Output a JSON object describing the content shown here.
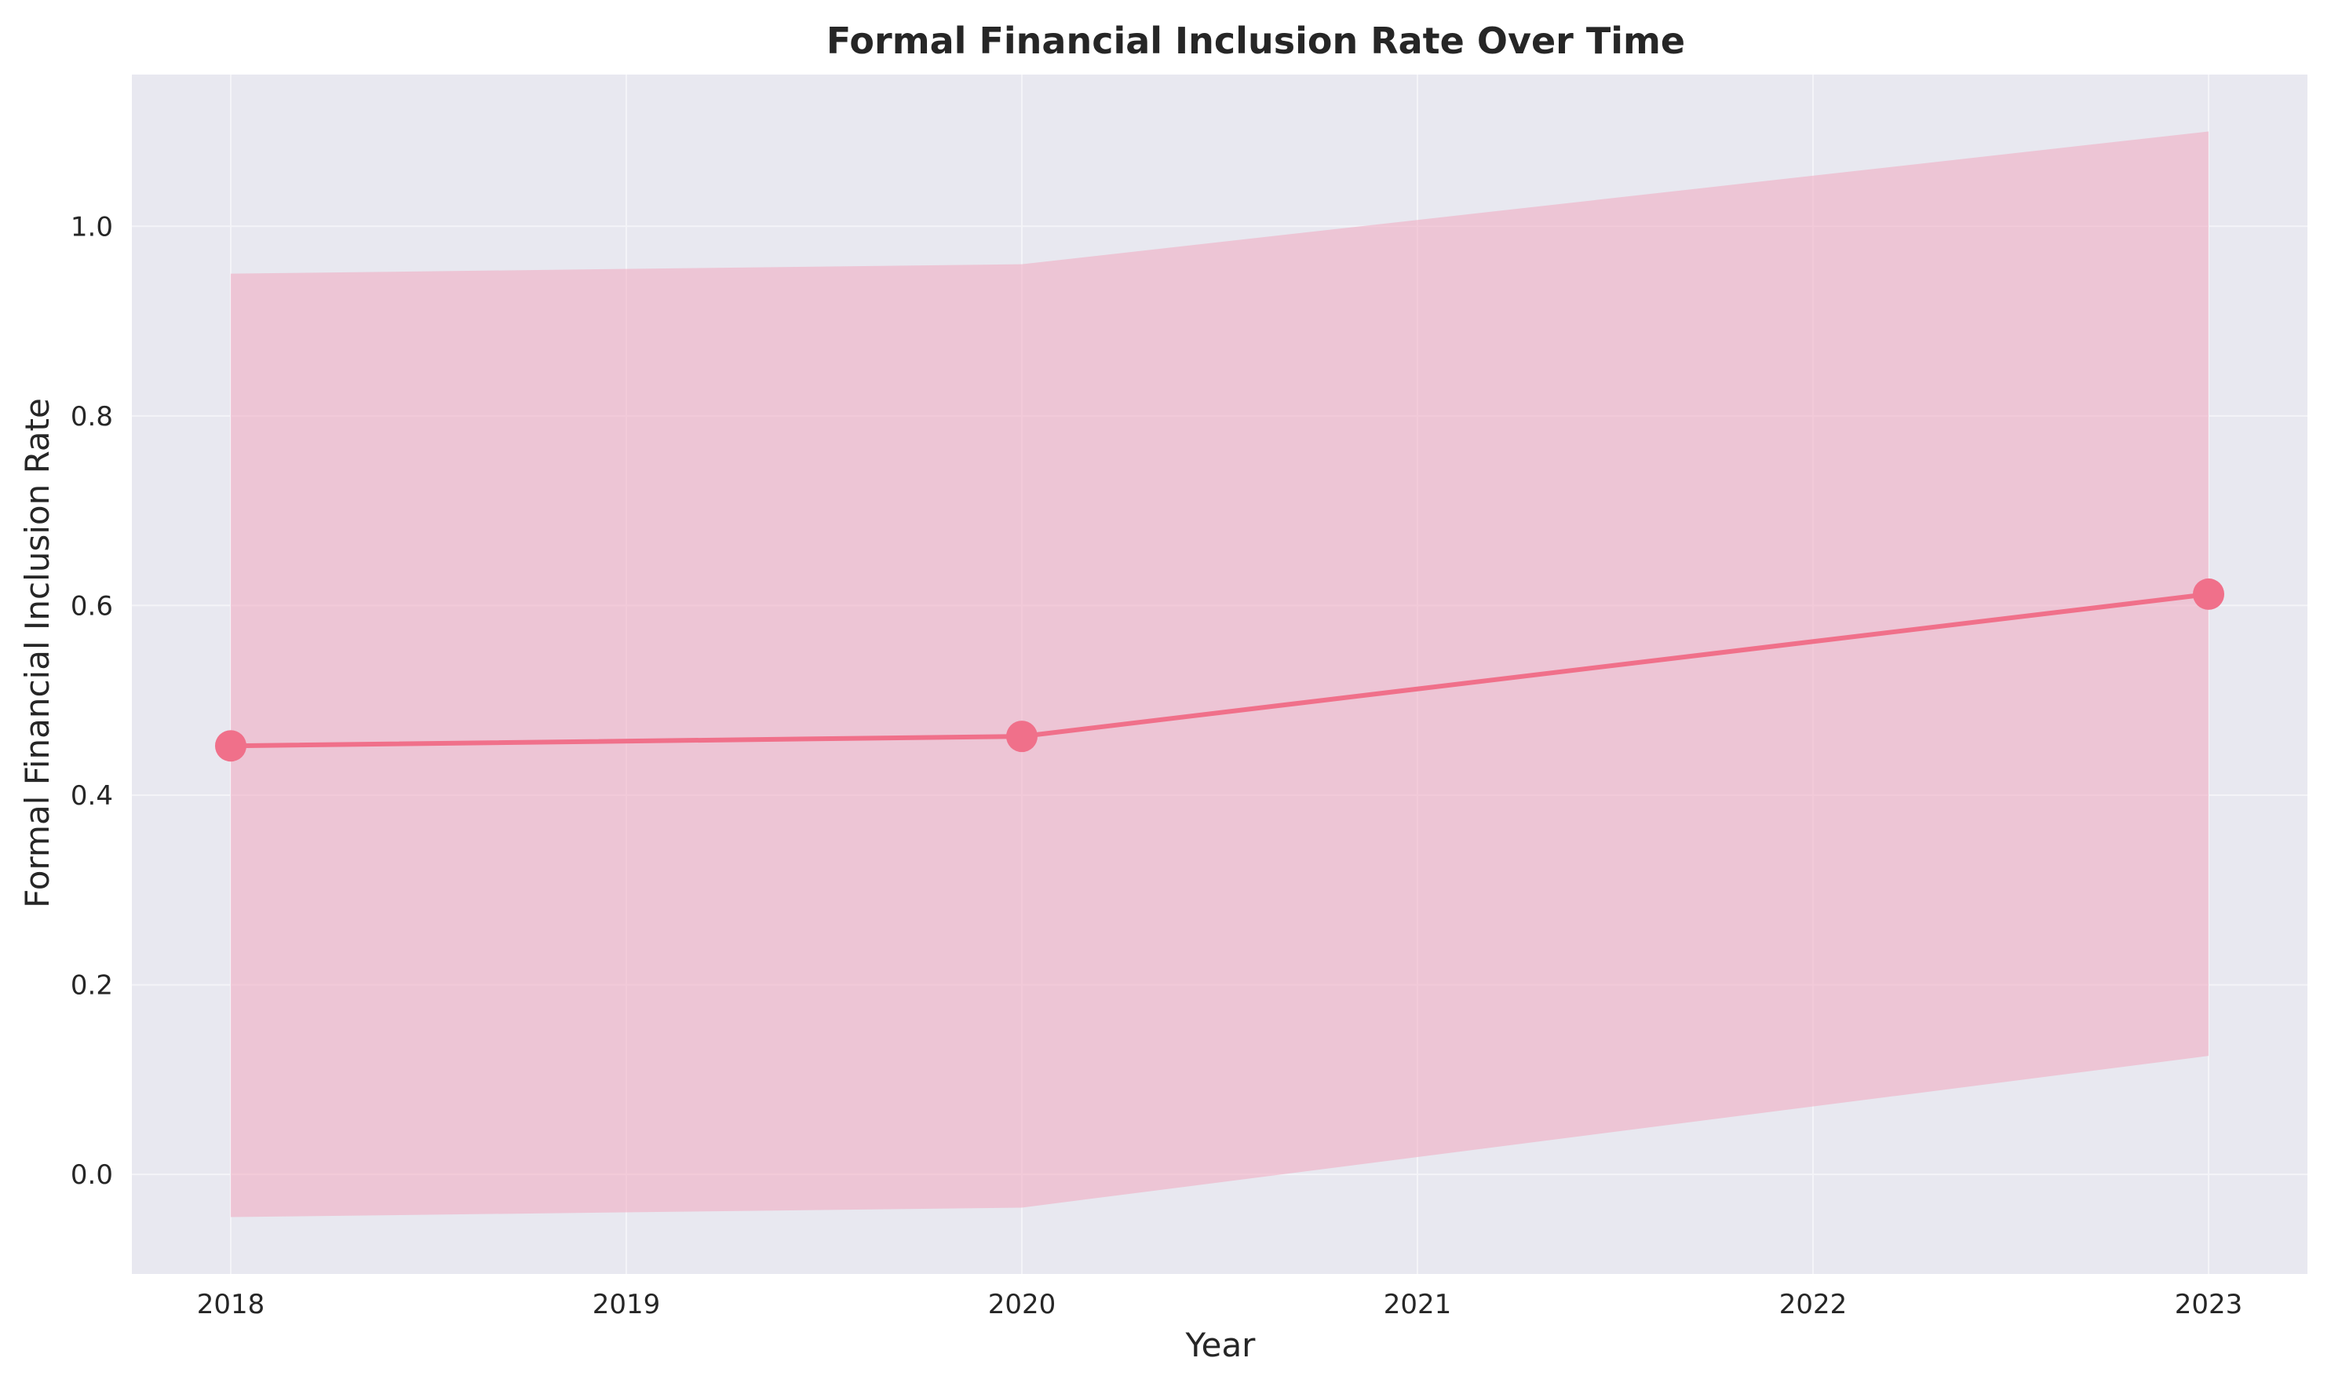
{
  "chart_data": {
    "type": "line",
    "title": "Formal Financial Inclusion Rate Over Time",
    "xlabel": "Year",
    "ylabel": "Formal Financial Inclusion Rate",
    "xlim": [
      2017.75,
      2023.25
    ],
    "ylim": [
      -0.105,
      1.16
    ],
    "xticks": [
      2018,
      2019,
      2020,
      2021,
      2022,
      2023
    ],
    "xtick_labels": [
      "2018",
      "2019",
      "2020",
      "2021",
      "2022",
      "2023"
    ],
    "yticks": [
      0.0,
      0.2,
      0.4,
      0.6,
      0.8,
      1.0
    ],
    "ytick_labels": [
      "0.0",
      "0.2",
      "0.4",
      "0.6",
      "0.8",
      "1.0"
    ],
    "grid": true,
    "series": [
      {
        "x": [
          2018,
          2020,
          2023
        ],
        "y": [
          0.452,
          0.462,
          0.612
        ],
        "band_lower": [
          -0.045,
          -0.035,
          0.125
        ],
        "band_upper": [
          0.95,
          0.96,
          1.1
        ],
        "color": "#f0708a",
        "band_color": "#f0a7bf"
      }
    ]
  },
  "colors": {
    "plot_background": "#e8e8f0",
    "grid": "#f4f4f8",
    "line": "#f0708a",
    "band": "#f0a7bf"
  }
}
